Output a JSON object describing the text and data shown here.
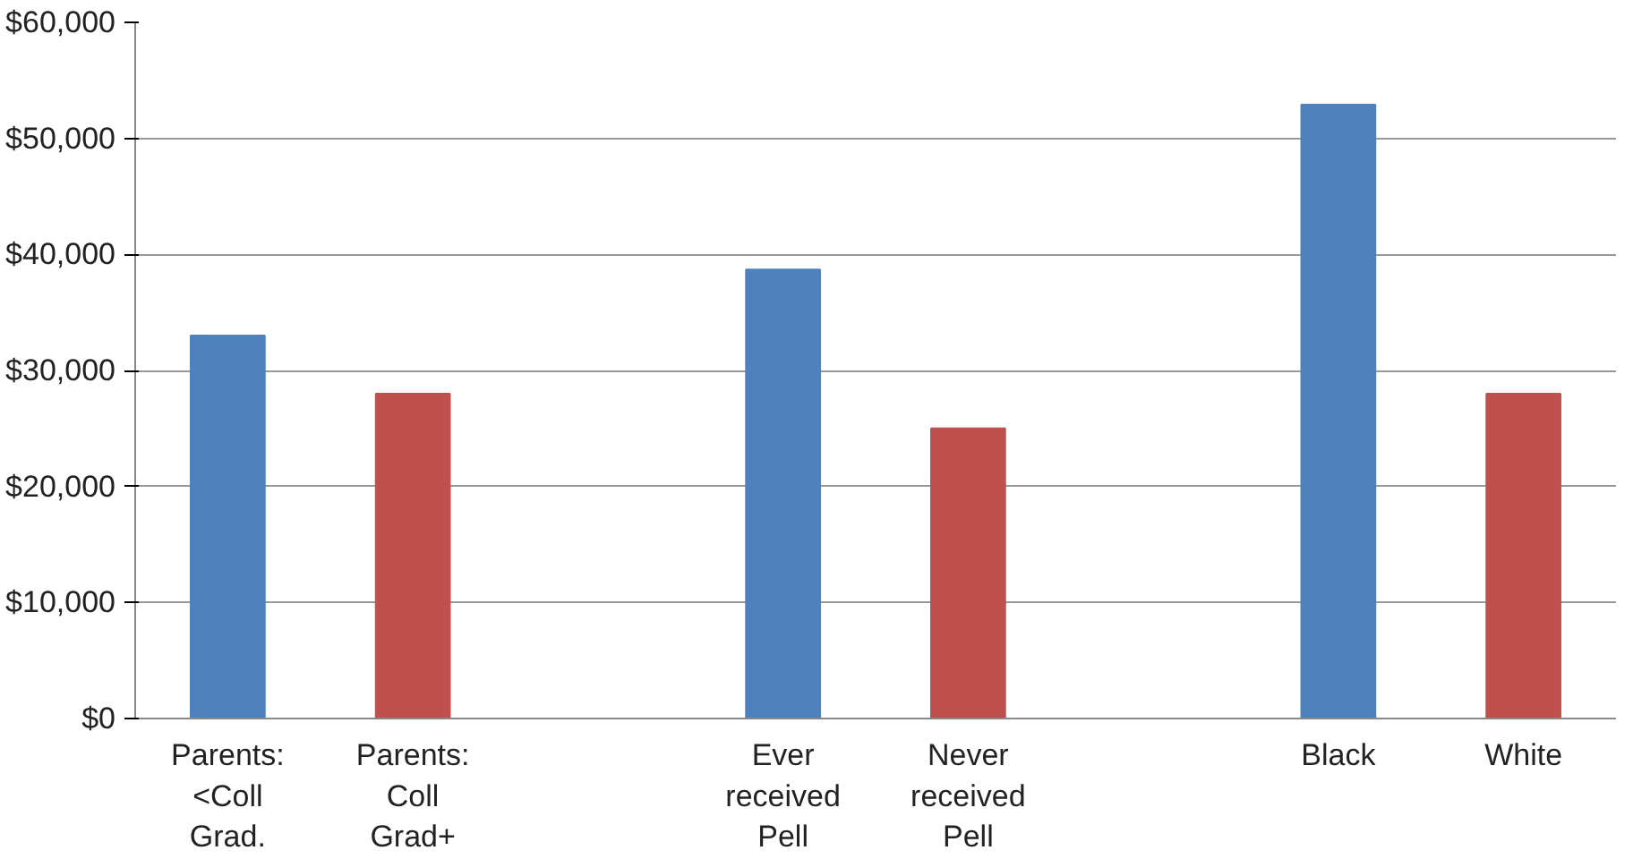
{
  "chart_data": {
    "type": "bar",
    "categories": [
      "Parents:\n<Coll\nGrad.",
      "Parents:\nColl\nGrad+",
      null,
      "Ever\nreceived\nPell",
      "Never\nreceived\nPell",
      null,
      "Black",
      "White"
    ],
    "values": [
      33000,
      28000,
      null,
      38700,
      25000,
      null,
      52900,
      28000
    ],
    "colors": [
      "#4f81bd",
      "#c0504d",
      "#4f81bd",
      "#4f81bd",
      "#c0504d",
      "#4f81bd",
      "#4f81bd",
      "#c0504d"
    ],
    "ylim": [
      0,
      60000
    ],
    "yticks": [
      {
        "value": 0,
        "label": "$0"
      },
      {
        "value": 10000,
        "label": "$10,000"
      },
      {
        "value": 20000,
        "label": "$20,000"
      },
      {
        "value": 30000,
        "label": "$30,000"
      },
      {
        "value": 40000,
        "label": "$40,000"
      },
      {
        "value": 50000,
        "label": "$50,000"
      },
      {
        "value": 60000,
        "label": "$60,000"
      }
    ],
    "grid": "y"
  }
}
